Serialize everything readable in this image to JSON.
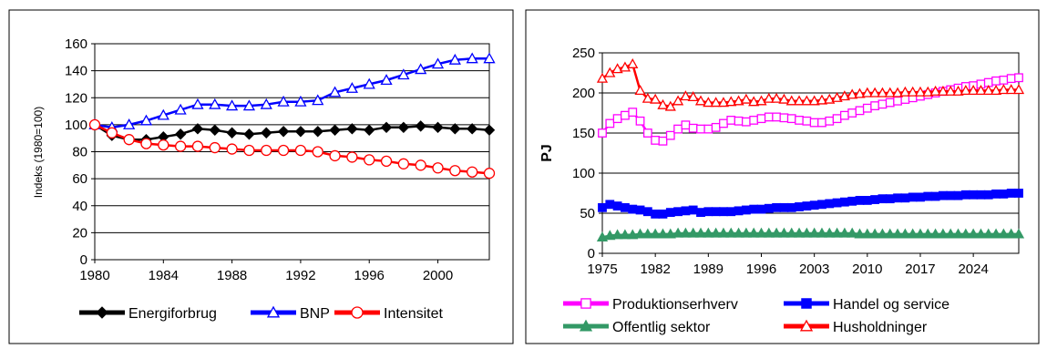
{
  "chart_data": [
    {
      "type": "line",
      "ylabel": "Indeks (1980=100)",
      "xlabel": "",
      "ylim": [
        0,
        160
      ],
      "xlim": [
        1980,
        2003
      ],
      "yticks": [
        0,
        20,
        40,
        60,
        80,
        100,
        120,
        140,
        160
      ],
      "xticks": [
        1980,
        1984,
        1988,
        1992,
        1996,
        2000
      ],
      "grid": "horizontal",
      "legend_position": "bottom",
      "series": [
        {
          "name": "Energiforbrug",
          "color": "#000000",
          "marker": "diamond-filled",
          "x": [
            1980,
            1981,
            1982,
            1983,
            1984,
            1985,
            1986,
            1987,
            1988,
            1989,
            1990,
            1991,
            1992,
            1993,
            1994,
            1995,
            1996,
            1997,
            1998,
            1999,
            2000,
            2001,
            2002,
            2003
          ],
          "values": [
            100,
            92,
            89,
            89,
            91,
            93,
            97,
            96,
            94,
            93,
            94,
            95,
            95,
            95,
            96,
            97,
            96,
            98,
            98,
            99,
            98,
            97,
            97,
            96
          ]
        },
        {
          "name": "BNP",
          "color": "#0000FF",
          "marker": "triangle-open",
          "x": [
            1980,
            1981,
            1982,
            1983,
            1984,
            1985,
            1986,
            1987,
            1988,
            1989,
            1990,
            1991,
            1992,
            1993,
            1994,
            1995,
            1996,
            1997,
            1998,
            1999,
            2000,
            2001,
            2002,
            2003
          ],
          "values": [
            100,
            98,
            100,
            103,
            107,
            111,
            115,
            115,
            114,
            114,
            115,
            117,
            117,
            118,
            124,
            127,
            130,
            133,
            137,
            141,
            145,
            148,
            149,
            149
          ]
        },
        {
          "name": "Intensitet",
          "color": "#FF0000",
          "marker": "circle-open",
          "x": [
            1980,
            1981,
            1982,
            1983,
            1984,
            1985,
            1986,
            1987,
            1988,
            1989,
            1990,
            1991,
            1992,
            1993,
            1994,
            1995,
            1996,
            1997,
            1998,
            1999,
            2000,
            2001,
            2002,
            2003
          ],
          "values": [
            100,
            94,
            89,
            86,
            85,
            84,
            84,
            83,
            82,
            81,
            81,
            81,
            81,
            80,
            77,
            76,
            74,
            73,
            71,
            70,
            68,
            66,
            65,
            64
          ]
        }
      ]
    },
    {
      "type": "line",
      "ylabel": "PJ",
      "xlabel": "",
      "ylim": [
        0,
        250
      ],
      "xlim": [
        1975,
        2030
      ],
      "yticks": [
        0,
        50,
        100,
        150,
        200,
        250
      ],
      "xticks": [
        1975,
        1982,
        1989,
        1996,
        2003,
        2010,
        2017,
        2024
      ],
      "grid": "horizontal",
      "legend_position": "bottom",
      "series": [
        {
          "name": "Produktionserhverv",
          "color": "#FF00FF",
          "marker": "square-open",
          "x": [
            1975,
            1976,
            1977,
            1978,
            1979,
            1980,
            1981,
            1982,
            1983,
            1984,
            1985,
            1986,
            1987,
            1988,
            1989,
            1990,
            1991,
            1992,
            1993,
            1994,
            1995,
            1996,
            1997,
            1998,
            1999,
            2000,
            2001,
            2002,
            2003,
            2004,
            2005,
            2006,
            2007,
            2008,
            2009,
            2010,
            2011,
            2012,
            2013,
            2014,
            2015,
            2016,
            2017,
            2018,
            2019,
            2020,
            2021,
            2022,
            2023,
            2024,
            2025,
            2026,
            2027,
            2028,
            2029,
            2030
          ],
          "values": [
            150,
            162,
            168,
            172,
            176,
            165,
            150,
            141,
            140,
            147,
            155,
            160,
            156,
            155,
            155,
            157,
            162,
            166,
            165,
            164,
            166,
            168,
            170,
            170,
            169,
            168,
            166,
            165,
            163,
            163,
            165,
            168,
            172,
            175,
            178,
            181,
            184,
            186,
            188,
            190,
            192,
            194,
            196,
            198,
            200,
            202,
            204,
            206,
            208,
            209,
            211,
            213,
            215,
            216,
            218,
            219
          ]
        },
        {
          "name": "Handel og service",
          "color": "#0000FF",
          "marker": "square-filled",
          "x": [
            1975,
            1976,
            1977,
            1978,
            1979,
            1980,
            1981,
            1982,
            1983,
            1984,
            1985,
            1986,
            1987,
            1988,
            1989,
            1990,
            1991,
            1992,
            1993,
            1994,
            1995,
            1996,
            1997,
            1998,
            1999,
            2000,
            2001,
            2002,
            2003,
            2004,
            2005,
            2006,
            2007,
            2008,
            2009,
            2010,
            2011,
            2012,
            2013,
            2014,
            2015,
            2016,
            2017,
            2018,
            2019,
            2020,
            2021,
            2022,
            2023,
            2024,
            2025,
            2026,
            2027,
            2028,
            2029,
            2030
          ],
          "values": [
            57,
            61,
            59,
            57,
            55,
            54,
            52,
            49,
            49,
            51,
            52,
            53,
            54,
            51,
            52,
            52,
            52,
            52,
            53,
            54,
            55,
            55,
            56,
            57,
            57,
            57,
            58,
            59,
            60,
            61,
            62,
            63,
            64,
            65,
            66,
            66,
            67,
            68,
            68,
            69,
            69,
            70,
            70,
            71,
            71,
            72,
            72,
            72,
            73,
            73,
            73,
            73,
            74,
            74,
            75,
            75
          ]
        },
        {
          "name": "Offentlig sektor",
          "color": "#339966",
          "marker": "triangle-filled",
          "x": [
            1975,
            1976,
            1977,
            1978,
            1979,
            1980,
            1981,
            1982,
            1983,
            1984,
            1985,
            1986,
            1987,
            1988,
            1989,
            1990,
            1991,
            1992,
            1993,
            1994,
            1995,
            1996,
            1997,
            1998,
            1999,
            2000,
            2001,
            2002,
            2003,
            2004,
            2005,
            2006,
            2007,
            2008,
            2009,
            2010,
            2011,
            2012,
            2013,
            2014,
            2015,
            2016,
            2017,
            2018,
            2019,
            2020,
            2021,
            2022,
            2023,
            2024,
            2025,
            2026,
            2027,
            2028,
            2029,
            2030
          ],
          "values": [
            20,
            22,
            23,
            23,
            23,
            24,
            24,
            24,
            24,
            24,
            25,
            25,
            25,
            25,
            25,
            25,
            25,
            25,
            25,
            25,
            25,
            25,
            25,
            25,
            25,
            25,
            25,
            25,
            25,
            25,
            25,
            25,
            25,
            25,
            24,
            24,
            24,
            24,
            24,
            24,
            24,
            24,
            24,
            24,
            24,
            24,
            24,
            24,
            24,
            24,
            24,
            24,
            24,
            24,
            24,
            24
          ]
        },
        {
          "name": "Husholdninger",
          "color": "#FF0000",
          "marker": "triangle-open",
          "x": [
            1975,
            1976,
            1977,
            1978,
            1979,
            1980,
            1981,
            1982,
            1983,
            1984,
            1985,
            1986,
            1987,
            1988,
            1989,
            1990,
            1991,
            1992,
            1993,
            1994,
            1995,
            1996,
            1997,
            1998,
            1999,
            2000,
            2001,
            2002,
            2003,
            2004,
            2005,
            2006,
            2007,
            2008,
            2009,
            2010,
            2011,
            2012,
            2013,
            2014,
            2015,
            2016,
            2017,
            2018,
            2019,
            2020,
            2021,
            2022,
            2023,
            2024,
            2025,
            2026,
            2027,
            2028,
            2029,
            2030
          ],
          "values": [
            218,
            225,
            230,
            232,
            236,
            203,
            193,
            192,
            185,
            183,
            190,
            196,
            195,
            190,
            188,
            188,
            188,
            189,
            190,
            192,
            189,
            190,
            193,
            193,
            192,
            190,
            190,
            190,
            190,
            191,
            192,
            194,
            196,
            198,
            199,
            200,
            200,
            200,
            200,
            200,
            201,
            201,
            201,
            201,
            202,
            202,
            202,
            202,
            203,
            203,
            203,
            203,
            203,
            204,
            204,
            204
          ]
        }
      ]
    }
  ]
}
